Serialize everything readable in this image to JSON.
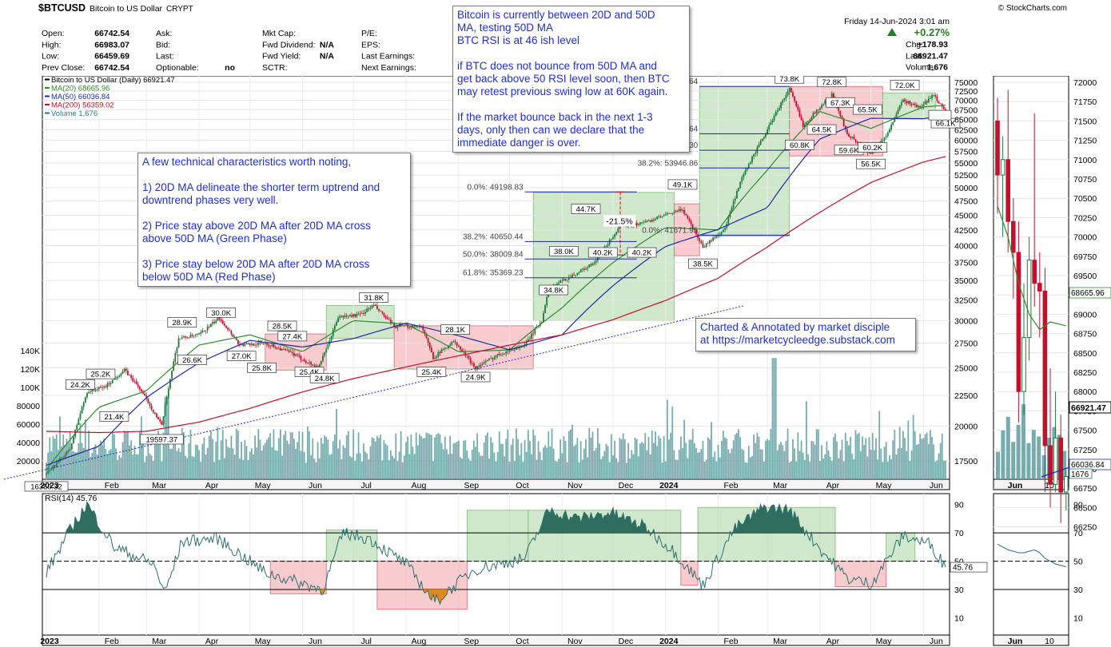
{
  "header": {
    "symbol": "$BTCUSD",
    "name": "Bitcoin to US Dollar",
    "type": "CRYPT",
    "brand": "© StockCharts.com",
    "date": "Friday  14-Jun-2024  3:01 am",
    "change_pct": "+0.27%",
    "quote": [
      {
        "label": "Open:",
        "value": "66742.54"
      },
      {
        "label": "High:",
        "value": "66983.07"
      },
      {
        "label": "Low:",
        "value": "66459.69"
      },
      {
        "label": "Prev Close:",
        "value": "66742.54"
      }
    ],
    "quote2": [
      {
        "label": "Ask:",
        "value": ""
      },
      {
        "label": "Bid:",
        "value": ""
      },
      {
        "label": "Last:",
        "value": ""
      },
      {
        "label": "Optionable:",
        "value": "no"
      }
    ],
    "quote3": [
      {
        "label": "Mkt Cap:",
        "value": ""
      },
      {
        "label": "Fwd Dividend:",
        "value": "N/A"
      },
      {
        "label": "Fwd Yield:",
        "value": "N/A"
      },
      {
        "label": "SCTR:",
        "value": ""
      }
    ],
    "quote4": [
      {
        "label": "P/E:",
        "value": ""
      },
      {
        "label": "EPS:",
        "value": ""
      },
      {
        "label": "Last Earnings:",
        "value": ""
      },
      {
        "label": "Next Earnings:",
        "value": ""
      }
    ],
    "right": [
      {
        "label": "Chg:",
        "value": "+178.93"
      },
      {
        "label": "Last:",
        "value": "66921.47"
      },
      {
        "label": "Volume:",
        "value": "1,676"
      }
    ]
  },
  "legend": [
    {
      "text": "Bitcoin to US Dollar (Daily) 66921.47",
      "color": "#000000"
    },
    {
      "text": "MA(20) 68665.96",
      "color": "#2e8b2e"
    },
    {
      "text": "MA(50) 66036.84",
      "color": "#1c2aa8"
    },
    {
      "text": "MA(200) 56359.02",
      "color": "#c0102a"
    },
    {
      "text": "Volume 1,676",
      "color": "#2a7a7a"
    }
  ],
  "notes": {
    "top": "Bitcoin is currently between 20D and 50D\nMA, testing 50D MA\nBTC RSI is at 46 ish level\n\nif BTC does not bounce from 50D MA and\nget back above 50 RSI level soon, then BTC\nmay retest previous swing low at 60K again.\n\nIf the market bounce back in the next 1-3\ndays, only then can we declare that the\nimmediate danger is over.",
    "left": "A few technical characteristics worth noting,\n\n1) 20D MA delineate the shorter term uptrend and\ndowntrend phases very well.\n\n2) Price stay above 20D MA after 20D MA cross\nabove 50D MA (Green Phase)\n\n3) Price stay below 20D MA after 20D MA cross\nbelow 50D MA (Red Phase)",
    "credit": "Charted & Annotated by market disciple\nat https://marketcycleedge.substack.com"
  },
  "rsi_label": "RSI(14) 45.76",
  "chart_data": {
    "type": "line",
    "title": "$BTCUSD Bitcoin to US Dollar CRYPT",
    "x_labels": [
      "2023",
      "Feb",
      "Mar",
      "Apr",
      "May",
      "Jun",
      "Jul",
      "Aug",
      "Sep",
      "Oct",
      "Nov",
      "Dec",
      "2024",
      "Feb",
      "Mar",
      "Apr",
      "May",
      "Jun"
    ],
    "price_axis": {
      "scale": "log",
      "ticks": [
        "75000",
        "72500",
        "70000",
        "67500",
        "65000",
        "62500",
        "60000",
        "57500",
        "55000",
        "52500",
        "50000",
        "47500",
        "45000",
        "42500",
        "40000",
        "37500",
        "35000",
        "32500",
        "30000",
        "27500",
        "25000",
        "22500",
        "20000",
        "17500"
      ]
    },
    "volume_axis": {
      "ticks": [
        "140K",
        "120K",
        "100K",
        "80000",
        "60000",
        "40000",
        "20000"
      ]
    },
    "zoom_axis": {
      "ticks": [
        "72000",
        "71750",
        "71500",
        "71250",
        "71000",
        "70750",
        "70500",
        "70250",
        "70000",
        "69750",
        "69500",
        "69250",
        "69000",
        "68750",
        "68500",
        "68250",
        "68000",
        "67750",
        "67500",
        "67250",
        "67000",
        "66750",
        "66500",
        "66250"
      ],
      "x_labels": [
        "Jun",
        "10"
      ]
    },
    "rsi_axis": {
      "ticks": [
        "90",
        "70",
        "50",
        "30",
        "10"
      ],
      "ylim": [
        0,
        100
      ],
      "levels": [
        70,
        50,
        30
      ]
    },
    "price_series": [
      {
        "name": "Bitcoin to US Dollar (Daily)",
        "x": [
          "2023-01-01",
          "2023-01-15",
          "2023-01-25",
          "2023-02-05",
          "2023-02-16",
          "2023-02-25",
          "2023-03-10",
          "2023-03-20",
          "2023-04-01",
          "2023-04-13",
          "2023-04-25",
          "2023-05-10",
          "2023-05-25",
          "2023-06-10",
          "2023-06-15",
          "2023-06-22",
          "2023-07-05",
          "2023-07-13",
          "2023-07-25",
          "2023-08-10",
          "2023-08-17",
          "2023-08-29",
          "2023-09-11",
          "2023-09-25",
          "2023-10-10",
          "2023-10-20",
          "2023-10-24",
          "2023-11-05",
          "2023-11-20",
          "2023-12-05",
          "2023-12-20",
          "2024-01-11",
          "2024-01-23",
          "2024-02-05",
          "2024-02-15",
          "2024-02-28",
          "2024-03-14",
          "2024-03-22",
          "2024-04-08",
          "2024-04-17",
          "2024-05-01",
          "2024-05-10",
          "2024-05-20",
          "2024-05-30",
          "2024-06-07",
          "2024-06-14"
        ],
        "values": [
          16600,
          18300,
          22800,
          23300,
          24800,
          23100,
          20000,
          28000,
          28400,
          30300,
          27300,
          27500,
          26500,
          25000,
          26800,
          30400,
          30700,
          31800,
          29300,
          29400,
          26000,
          27700,
          25000,
          26400,
          27300,
          30000,
          34000,
          35400,
          37400,
          43000,
          43800,
          46000,
          39800,
          42700,
          51800,
          61000,
          73100,
          63500,
          71500,
          61500,
          57000,
          61000,
          70000,
          68000,
          71500,
          66900
        ]
      },
      {
        "name": "MA(20)",
        "x": [
          "2023-01-01",
          "2023-02-01",
          "2023-03-01",
          "2023-04-01",
          "2023-05-01",
          "2023-06-01",
          "2023-07-01",
          "2023-08-01",
          "2023-09-01",
          "2023-10-01",
          "2023-11-01",
          "2023-12-01",
          "2024-01-01",
          "2024-02-01",
          "2024-03-01",
          "2024-04-01",
          "2024-05-01",
          "2024-06-01",
          "2024-06-14"
        ],
        "values": [
          16900,
          21500,
          22900,
          27300,
          28400,
          26600,
          30000,
          29600,
          26600,
          26800,
          31500,
          37500,
          42900,
          42500,
          53500,
          67000,
          62800,
          68200,
          68666
        ]
      },
      {
        "name": "MA(50)",
        "x": [
          "2023-01-01",
          "2023-02-01",
          "2023-03-01",
          "2023-04-01",
          "2023-05-01",
          "2023-06-01",
          "2023-07-01",
          "2023-08-01",
          "2023-09-01",
          "2023-10-01",
          "2023-11-01",
          "2023-12-01",
          "2024-01-01",
          "2024-02-01",
          "2024-03-01",
          "2024-04-01",
          "2024-05-01",
          "2024-06-01",
          "2024-06-14"
        ],
        "values": [
          17200,
          18500,
          22300,
          25500,
          27800,
          27100,
          28000,
          29700,
          28300,
          26800,
          28400,
          34300,
          39900,
          42600,
          46300,
          60300,
          65300,
          65200,
          66037
        ]
      },
      {
        "name": "MA(200)",
        "x": [
          "2023-01-01",
          "2023-02-01",
          "2023-03-01",
          "2023-04-01",
          "2023-05-01",
          "2023-06-01",
          "2023-07-01",
          "2023-08-01",
          "2023-09-01",
          "2023-10-01",
          "2023-11-01",
          "2023-12-01",
          "2024-01-01",
          "2024-02-01",
          "2024-03-01",
          "2024-04-01",
          "2024-05-01",
          "2024-06-01",
          "2024-06-14"
        ],
        "values": [
          19600,
          19500,
          19600,
          20300,
          21400,
          22800,
          24000,
          25100,
          26200,
          27300,
          28400,
          30100,
          32400,
          35300,
          39800,
          45500,
          51000,
          55200,
          56359
        ]
      }
    ],
    "volume": {
      "x_start": "2023-01-01",
      "x_end": "2024-06-14",
      "typical_range": [
        20000,
        60000
      ],
      "peaks": [
        {
          "x": "2024-03-05",
          "value": 132000
        },
        {
          "x": "2023-03-13",
          "value": 90000
        }
      ]
    },
    "rsi": {
      "name": "RSI(14)",
      "last": 45.76,
      "x": [
        "2023-01-01",
        "2023-01-15",
        "2023-01-25",
        "2023-02-10",
        "2023-03-05",
        "2023-03-12",
        "2023-03-22",
        "2023-04-12",
        "2023-05-10",
        "2023-06-13",
        "2023-06-25",
        "2023-07-10",
        "2023-08-01",
        "2023-08-18",
        "2023-09-10",
        "2023-10-10",
        "2023-10-24",
        "2023-11-10",
        "2023-11-30",
        "2023-12-20",
        "2024-01-05",
        "2024-01-23",
        "2024-02-10",
        "2024-02-28",
        "2024-03-14",
        "2024-04-03",
        "2024-04-17",
        "2024-05-01",
        "2024-05-20",
        "2024-06-05",
        "2024-06-14"
      ],
      "values": [
        42,
        72,
        90,
        60,
        48,
        28,
        64,
        66,
        42,
        30,
        70,
        66,
        48,
        21,
        44,
        52,
        86,
        80,
        84,
        74,
        58,
        33,
        72,
        88,
        86,
        56,
        38,
        34,
        68,
        62,
        46
      ]
    },
    "rsi_boxes": [
      {
        "from": "2023-05-13",
        "to": "2023-06-15",
        "low": 27,
        "high": 50,
        "phase": "red"
      },
      {
        "from": "2023-06-15",
        "to": "2023-07-15",
        "low": 50,
        "high": 72,
        "phase": "green"
      },
      {
        "from": "2023-07-15",
        "to": "2023-09-06",
        "low": 16,
        "high": 50,
        "phase": "red"
      },
      {
        "from": "2023-09-06",
        "to": "2023-10-12",
        "low": 50,
        "high": 86,
        "phase": "green"
      },
      {
        "from": "2023-10-12",
        "to": "2024-01-10",
        "low": 50,
        "high": 86,
        "phase": "green"
      },
      {
        "from": "2024-01-10",
        "to": "2024-01-20",
        "low": 33,
        "high": 50,
        "phase": "red"
      },
      {
        "from": "2024-01-20",
        "to": "2024-04-10",
        "low": 50,
        "high": 88,
        "phase": "green"
      },
      {
        "from": "2024-04-10",
        "to": "2024-05-10",
        "low": 32,
        "high": 50,
        "phase": "red"
      },
      {
        "from": "2024-05-10",
        "to": "2024-05-27",
        "low": 50,
        "high": 70,
        "phase": "green"
      }
    ],
    "phase_boxes": [
      {
        "from": "2023-05-10",
        "to": "2023-06-15",
        "low": 24800,
        "high": 28500,
        "phase": "red"
      },
      {
        "from": "2023-06-15",
        "to": "2023-07-25",
        "low": 28000,
        "high": 31800,
        "phase": "green"
      },
      {
        "from": "2023-07-25",
        "to": "2023-10-15",
        "low": 24900,
        "high": 29400,
        "phase": "red"
      },
      {
        "from": "2023-10-15",
        "to": "2024-01-06",
        "low": 30000,
        "high": 49100,
        "phase": "green"
      },
      {
        "from": "2024-01-06",
        "to": "2024-01-21",
        "low": 38500,
        "high": 47000,
        "phase": "red"
      },
      {
        "from": "2024-01-21",
        "to": "2024-03-14",
        "low": 41500,
        "high": 73800,
        "phase": "green"
      },
      {
        "from": "2024-03-14",
        "to": "2024-05-08",
        "low": 56500,
        "high": 73800,
        "phase": "red"
      },
      {
        "from": "2024-05-08",
        "to": "2024-06-08",
        "low": 65000,
        "high": 72000,
        "phase": "green"
      }
    ],
    "fib_sets": [
      {
        "from": "2023-10-10",
        "to": "2023-12-15",
        "levels": [
          {
            "label": "0.0%: 49198.83",
            "value": 49199
          },
          {
            "label": "38.2%: 40650.44",
            "value": 40650
          },
          {
            "label": "50.0%: 38009.84",
            "value": 38010
          },
          {
            "label": "61.8%: 35369.23",
            "value": 35369
          }
        ]
      },
      {
        "from": "2024-01-21",
        "to": "2024-03-14",
        "levels": [
          {
            "label": "100.0%: 73802.64",
            "value": 73803
          },
          {
            "label": "61.8%: 61528.64",
            "value": 61529
          },
          {
            "label": "50.0%: 57737.30",
            "value": 57737
          },
          {
            "label": "38.2%: 53946.86",
            "value": 53947
          },
          {
            "label": "0.0%: 41671.95",
            "value": 41672
          }
        ]
      }
    ],
    "price_labels": [
      {
        "x": "2023-01-01",
        "value": 16350,
        "label": "16350.32"
      },
      {
        "x": "2023-01-21",
        "value": 24200,
        "label": "24.2K"
      },
      {
        "x": "2023-02-02",
        "value": 25200,
        "label": "25.2K"
      },
      {
        "x": "2023-02-10",
        "value": 21400,
        "label": "21.4K"
      },
      {
        "x": "2023-03-10",
        "value": 19597,
        "label": "19597.37"
      },
      {
        "x": "2023-03-22",
        "value": 28900,
        "label": "28.9K"
      },
      {
        "x": "2023-03-28",
        "value": 26600,
        "label": "26.6K"
      },
      {
        "x": "2023-04-14",
        "value": 30000,
        "label": "30.0K"
      },
      {
        "x": "2023-04-26",
        "value": 27000,
        "label": "27.0K"
      },
      {
        "x": "2023-05-08",
        "value": 25800,
        "label": "25.8K"
      },
      {
        "x": "2023-05-20",
        "value": 28500,
        "label": "28.5K"
      },
      {
        "x": "2023-05-26",
        "value": 27400,
        "label": "27.4K"
      },
      {
        "x": "2023-06-05",
        "value": 25400,
        "label": "25.4K"
      },
      {
        "x": "2023-06-14",
        "value": 24800,
        "label": "24.8K"
      },
      {
        "x": "2023-07-13",
        "value": 31800,
        "label": "31.8K"
      },
      {
        "x": "2023-08-16",
        "value": 25400,
        "label": "25.4K"
      },
      {
        "x": "2023-08-30",
        "value": 28100,
        "label": "28.1K"
      },
      {
        "x": "2023-09-11",
        "value": 24900,
        "label": "24.9K"
      },
      {
        "x": "2023-10-27",
        "value": 34800,
        "label": "34.8K"
      },
      {
        "x": "2023-11-02",
        "value": 38000,
        "label": "38.0K"
      },
      {
        "x": "2023-11-15",
        "value": 44700,
        "label": "44.7K"
      },
      {
        "x": "2023-11-25",
        "value": 40200,
        "label": "40.2K"
      },
      {
        "x": "2023-12-18",
        "value": 40200,
        "label": "40.2K"
      },
      {
        "x": "2024-01-11",
        "value": 49100,
        "label": "49.1K"
      },
      {
        "x": "2024-01-23",
        "value": 38500,
        "label": "38.5K"
      },
      {
        "x": "2024-03-14",
        "value": 73800,
        "label": "73.8K"
      },
      {
        "x": "2024-03-20",
        "value": 60800,
        "label": "60.8K"
      },
      {
        "x": "2024-04-02",
        "value": 64500,
        "label": "64.5K"
      },
      {
        "x": "2024-04-08",
        "value": 72800,
        "label": "72.8K"
      },
      {
        "x": "2024-04-13",
        "value": 67300,
        "label": "67.3K"
      },
      {
        "x": "2024-04-18",
        "value": 59600,
        "label": "59.6K"
      },
      {
        "x": "2024-04-29",
        "value": 65500,
        "label": "65.5K"
      },
      {
        "x": "2024-05-01",
        "value": 56500,
        "label": "56.5K"
      },
      {
        "x": "2024-05-02",
        "value": 60200,
        "label": "60.2K"
      },
      {
        "x": "2024-05-21",
        "value": 72000,
        "label": "72.0K"
      },
      {
        "x": "2024-06-14",
        "value": 66100,
        "label": "66.1K"
      }
    ],
    "annotations": [
      {
        "label": "-21.5%",
        "from_value": 49199,
        "to_value": 38600
      }
    ],
    "last_values": {
      "ma20": "68665.96",
      "close": "66921.47",
      "ma50": "66036.84",
      "volume": "1676",
      "rsi": "45.76"
    },
    "colors": {
      "up": "#1f7a3a",
      "down": "#c4102c",
      "ma20": "#2e8b2e",
      "ma50": "#1c2aa8",
      "ma200": "#c0102a",
      "volume": "#5f9ea0",
      "green_box": "#a8d5a2",
      "red_box": "#f2a0a5",
      "rsi_line": "#2f6e6e",
      "rsi_fill_hi": "#2f6e5e",
      "rsi_fill_lo": "#e08a20"
    },
    "grid": true
  }
}
